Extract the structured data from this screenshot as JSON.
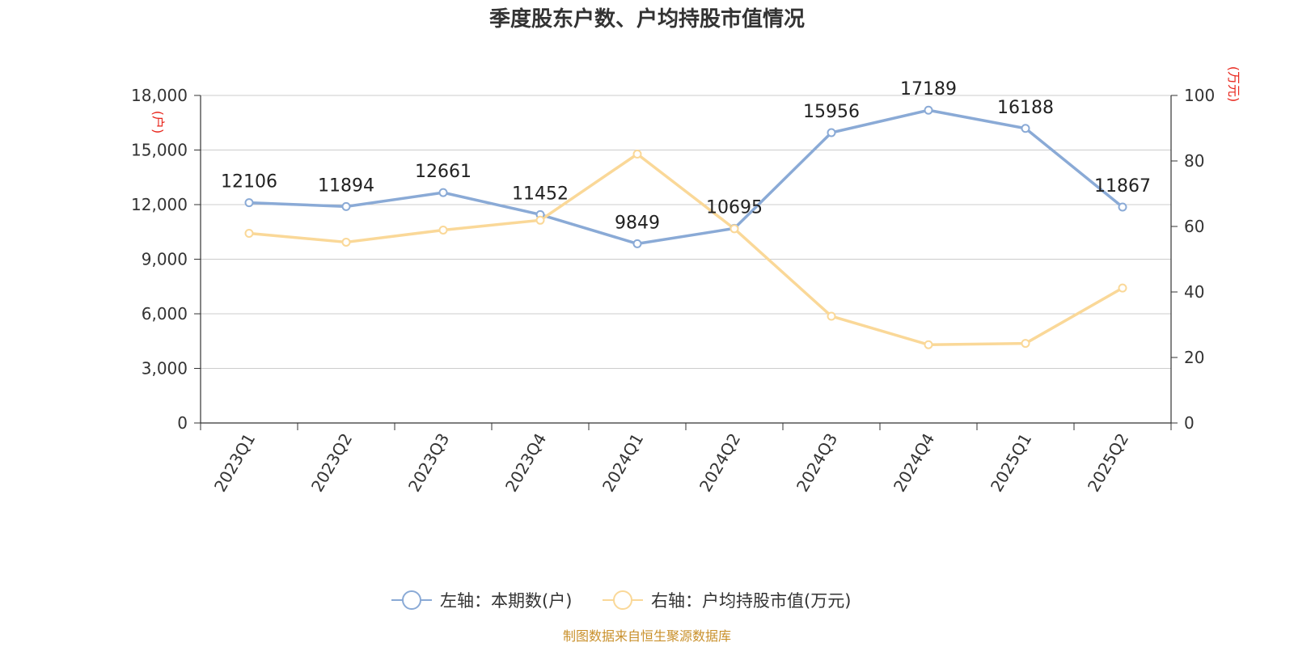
{
  "chart_data": {
    "type": "line",
    "title": "季度股东户数、户均持股市值情况",
    "categories": [
      "2023Q1",
      "2023Q2",
      "2023Q3",
      "2023Q4",
      "2024Q1",
      "2024Q2",
      "2024Q3",
      "2024Q4",
      "2025Q1",
      "2025Q2"
    ],
    "left_axis": {
      "unit": "(户)",
      "ylim": [
        0,
        18000
      ],
      "ticks": [
        0,
        3000,
        6000,
        9000,
        12000,
        15000,
        18000
      ],
      "tick_labels": [
        "0",
        "3,000",
        "6,000",
        "9,000",
        "12,000",
        "15,000",
        "18,000"
      ]
    },
    "right_axis": {
      "unit": "(万元)",
      "ylim": [
        0,
        100
      ],
      "ticks": [
        0,
        20,
        40,
        60,
        80,
        100
      ],
      "tick_labels": [
        "0",
        "20",
        "40",
        "60",
        "80",
        "100"
      ]
    },
    "series": [
      {
        "name": "左轴：本期数(户)",
        "axis": "left",
        "color": "#8aaad6",
        "values": [
          12106,
          11894,
          12661,
          11452,
          9849,
          10695,
          15956,
          17189,
          16188,
          11867
        ],
        "labels": [
          "12106",
          "11894",
          "12661",
          "11452",
          "9849",
          "10695",
          "15956",
          "17189",
          "16188",
          "11867"
        ]
      },
      {
        "name": "右轴：户均持股市值(万元)",
        "axis": "right",
        "color": "#fad898",
        "values": [
          57.9,
          55.2,
          58.9,
          61.9,
          82.1,
          59.3,
          32.6,
          23.9,
          24.3,
          41.2
        ]
      }
    ],
    "grid": true,
    "legend_position": "bottom-center",
    "source": "制图数据来自恒生聚源数据库"
  }
}
